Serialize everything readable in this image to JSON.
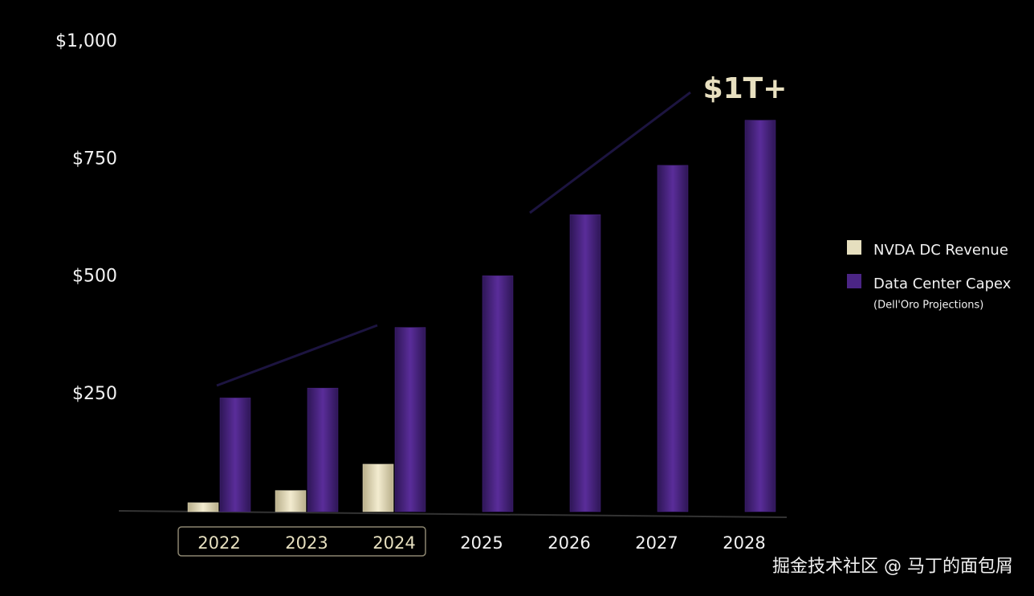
{
  "chart_data": {
    "type": "bar",
    "annotation": "$1T+",
    "legend_note": "(Dell'Oro Projections)",
    "watermark": "掘金技术社区 @ 马丁的面包屑",
    "categories": [
      "2022",
      "2023",
      "2024",
      "2025",
      "2026",
      "2027",
      "2028"
    ],
    "series": [
      {
        "name": "NVDA DC Revenue",
        "color": "#e6dfbf",
        "values": [
          19,
          45,
          101,
          null,
          null,
          null,
          null
        ]
      },
      {
        "name": "Data Center Capex",
        "color": "#4b2585",
        "values": [
          242,
          263,
          392,
          502,
          632,
          737,
          833
        ]
      }
    ],
    "ylim": [
      0,
      1000
    ],
    "yticks": [
      {
        "value": 250,
        "label": "$250"
      },
      {
        "value": 500,
        "label": "$500"
      },
      {
        "value": 750,
        "label": "$750"
      },
      {
        "value": 1000,
        "label": "$1,000"
      }
    ],
    "legend": "right"
  }
}
